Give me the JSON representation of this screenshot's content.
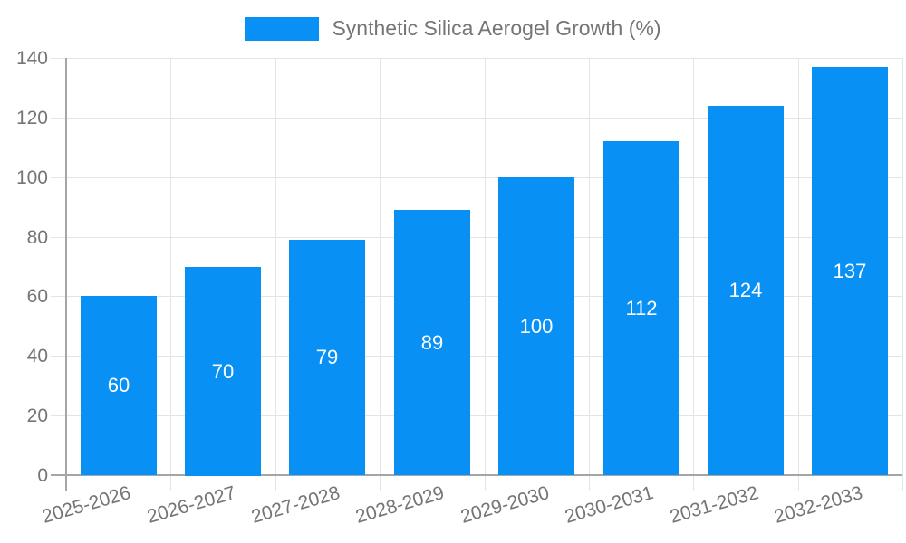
{
  "legend": {
    "swatch_icon": "legend-color-swatch",
    "label": "Synthetic Silica Aerogel Growth (%)"
  },
  "chart_data": {
    "type": "bar",
    "title": "Synthetic Silica Aerogel Growth (%)",
    "categories": [
      "2025-2026",
      "2026-2027",
      "2027-2028",
      "2028-2029",
      "2029-2030",
      "2030-2031",
      "2031-2032",
      "2032-2033"
    ],
    "values": [
      60,
      70,
      79,
      89,
      100,
      112,
      124,
      137
    ],
    "xlabel": "",
    "ylabel": "",
    "ylim": [
      0,
      140
    ],
    "ytick_step": 20,
    "yticks": [
      0,
      20,
      40,
      60,
      80,
      100,
      120,
      140
    ],
    "grid": true,
    "legend_position": "top-center",
    "bar_labels_inside": true,
    "colors": {
      "bar": "#0890f5",
      "bar_label": "#ffffff",
      "axis_line": "#a6a6a6",
      "gridline": "#e4e4e4",
      "tick_text": "#757575",
      "legend_text": "#757575",
      "background": "#ffffff"
    }
  }
}
